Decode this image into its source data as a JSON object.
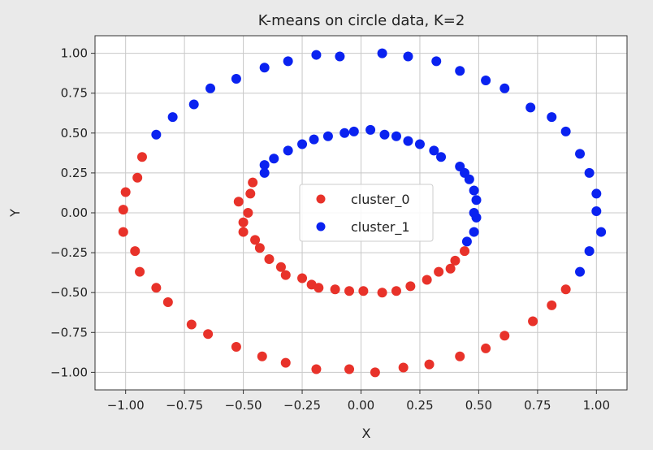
{
  "chart_data": {
    "type": "scatter",
    "title": "K-means on circle data, K=2",
    "xlabel": "X",
    "ylabel": "Y",
    "xlim": [
      -1.13,
      1.13
    ],
    "ylim": [
      -1.11,
      1.11
    ],
    "grid": true,
    "legend_position": "center",
    "x_ticks": [
      -1.0,
      -0.75,
      -0.5,
      -0.25,
      0.0,
      0.25,
      0.5,
      0.75,
      1.0
    ],
    "x_tick_labels": [
      "−1.00",
      "−0.75",
      "−0.50",
      "−0.25",
      "0.00",
      "0.25",
      "0.50",
      "0.75",
      "1.00"
    ],
    "y_ticks": [
      1.0,
      0.75,
      0.5,
      0.25,
      0.0,
      -0.25,
      -0.5,
      -0.75,
      -1.0
    ],
    "y_tick_labels": [
      "1.00",
      "0.75",
      "0.50",
      "0.25",
      "0.00",
      "−0.25",
      "−0.50",
      "−0.75",
      "−1.00"
    ],
    "series": [
      {
        "name": "cluster_0",
        "color": "#e8322a",
        "points": [
          [
            -0.93,
            0.35
          ],
          [
            -0.95,
            0.22
          ],
          [
            -1.0,
            0.13
          ],
          [
            -1.01,
            0.02
          ],
          [
            -1.01,
            -0.12
          ],
          [
            -0.96,
            -0.24
          ],
          [
            -0.94,
            -0.37
          ],
          [
            -0.87,
            -0.47
          ],
          [
            -0.82,
            -0.56
          ],
          [
            -0.72,
            -0.7
          ],
          [
            -0.65,
            -0.76
          ],
          [
            -0.53,
            -0.84
          ],
          [
            -0.42,
            -0.9
          ],
          [
            -0.32,
            -0.94
          ],
          [
            -0.19,
            -0.98
          ],
          [
            -0.05,
            -0.98
          ],
          [
            0.06,
            -1.0
          ],
          [
            0.18,
            -0.97
          ],
          [
            0.29,
            -0.95
          ],
          [
            0.42,
            -0.9
          ],
          [
            0.53,
            -0.85
          ],
          [
            0.61,
            -0.77
          ],
          [
            0.73,
            -0.68
          ],
          [
            0.81,
            -0.58
          ],
          [
            0.87,
            -0.48
          ],
          [
            -0.46,
            0.19
          ],
          [
            -0.47,
            0.12
          ],
          [
            -0.52,
            0.07
          ],
          [
            -0.48,
            0.0
          ],
          [
            -0.5,
            -0.06
          ],
          [
            -0.5,
            -0.12
          ],
          [
            -0.45,
            -0.17
          ],
          [
            -0.43,
            -0.22
          ],
          [
            -0.39,
            -0.29
          ],
          [
            -0.34,
            -0.34
          ],
          [
            -0.32,
            -0.39
          ],
          [
            -0.25,
            -0.41
          ],
          [
            -0.21,
            -0.45
          ],
          [
            -0.18,
            -0.47
          ],
          [
            -0.11,
            -0.48
          ],
          [
            -0.05,
            -0.49
          ],
          [
            0.01,
            -0.49
          ],
          [
            0.09,
            -0.5
          ],
          [
            0.15,
            -0.49
          ],
          [
            0.21,
            -0.46
          ],
          [
            0.28,
            -0.42
          ],
          [
            0.33,
            -0.37
          ],
          [
            0.38,
            -0.35
          ],
          [
            0.4,
            -0.3
          ],
          [
            0.44,
            -0.24
          ]
        ]
      },
      {
        "name": "cluster_1",
        "color": "#0a22f0",
        "points": [
          [
            -0.87,
            0.49
          ],
          [
            -0.8,
            0.6
          ],
          [
            -0.71,
            0.68
          ],
          [
            -0.64,
            0.78
          ],
          [
            -0.53,
            0.84
          ],
          [
            -0.41,
            0.91
          ],
          [
            -0.31,
            0.95
          ],
          [
            -0.19,
            0.99
          ],
          [
            -0.09,
            0.98
          ],
          [
            0.09,
            1.0
          ],
          [
            0.2,
            0.98
          ],
          [
            0.32,
            0.95
          ],
          [
            0.42,
            0.89
          ],
          [
            0.53,
            0.83
          ],
          [
            0.61,
            0.78
          ],
          [
            0.72,
            0.66
          ],
          [
            0.81,
            0.6
          ],
          [
            0.87,
            0.51
          ],
          [
            0.93,
            0.37
          ],
          [
            0.97,
            0.25
          ],
          [
            1.0,
            0.12
          ],
          [
            1.0,
            0.01
          ],
          [
            1.02,
            -0.12
          ],
          [
            0.97,
            -0.24
          ],
          [
            0.93,
            -0.37
          ],
          [
            -0.41,
            0.3
          ],
          [
            -0.41,
            0.25
          ],
          [
            -0.37,
            0.34
          ],
          [
            -0.31,
            0.39
          ],
          [
            -0.25,
            0.43
          ],
          [
            -0.2,
            0.46
          ],
          [
            -0.14,
            0.48
          ],
          [
            -0.07,
            0.5
          ],
          [
            -0.03,
            0.51
          ],
          [
            0.04,
            0.52
          ],
          [
            0.1,
            0.49
          ],
          [
            0.15,
            0.48
          ],
          [
            0.2,
            0.45
          ],
          [
            0.25,
            0.43
          ],
          [
            0.31,
            0.39
          ],
          [
            0.34,
            0.35
          ],
          [
            0.42,
            0.29
          ],
          [
            0.44,
            0.25
          ],
          [
            0.46,
            0.21
          ],
          [
            0.48,
            0.14
          ],
          [
            0.49,
            0.08
          ],
          [
            0.48,
            0.0
          ],
          [
            0.49,
            -0.03
          ],
          [
            0.48,
            -0.12
          ],
          [
            0.45,
            -0.18
          ]
        ]
      }
    ]
  }
}
